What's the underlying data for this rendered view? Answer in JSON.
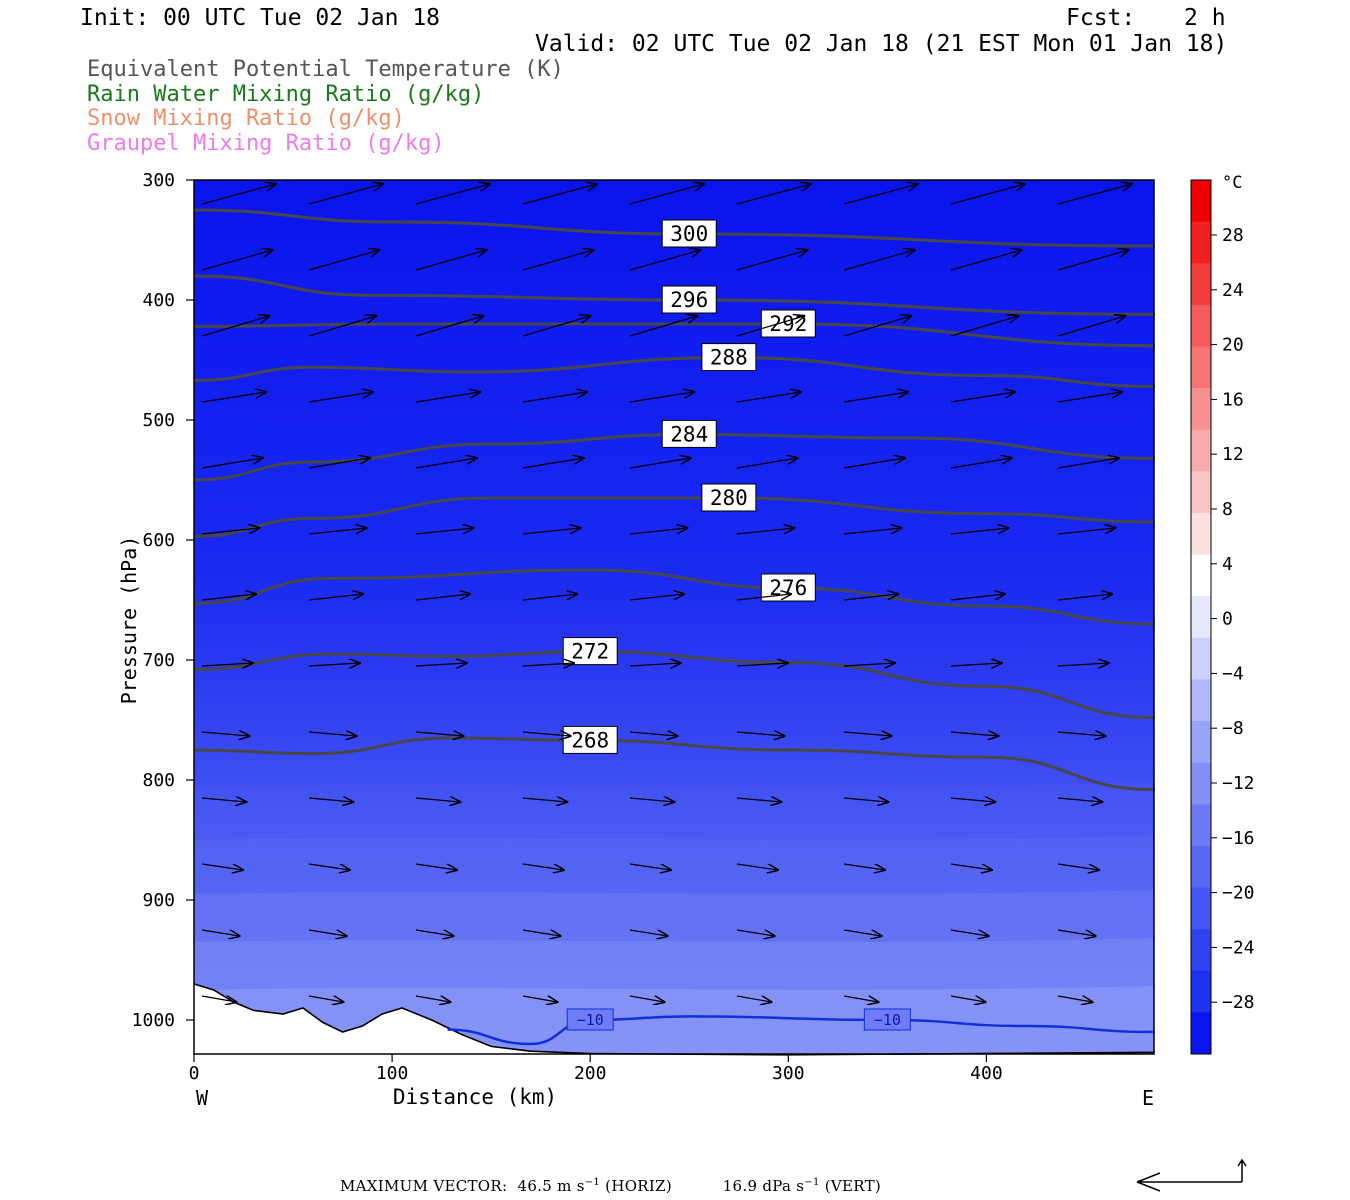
{
  "header": {
    "init": "Init: 00 UTC Tue 02 Jan 18",
    "fcst_label": "Fcst:",
    "fcst_value": "2 h",
    "valid": "Valid: 02 UTC Tue 02 Jan 18 (21 EST Mon 01 Jan 18)"
  },
  "legend": [
    {
      "label": "Equivalent Potential Temperature (K)",
      "color": "#555555"
    },
    {
      "label": "Rain Water Mixing Ratio (g/kg)",
      "color": "#1a7a1a"
    },
    {
      "label": "Snow Mixing Ratio (g/kg)",
      "color": "#f0906a"
    },
    {
      "label": "Graupel Mixing Ratio (g/kg)",
      "color": "#f07af0"
    }
  ],
  "colorbar": {
    "unit": "°C",
    "labels": [
      "28",
      "24",
      "20",
      "16",
      "12",
      "8",
      "4",
      "0",
      "−4",
      "−8",
      "−12",
      "−16",
      "−20",
      "−24",
      "−28"
    ]
  },
  "chart_data": {
    "type": "cross-section",
    "xlabel": "Distance (km)",
    "ylabel": "Pressure (hPa)",
    "xlim": [
      0,
      485
    ],
    "ylim": [
      1030,
      300
    ],
    "x_ticks": [
      0,
      100,
      200,
      300,
      400
    ],
    "y_ticks": [
      300,
      400,
      500,
      600,
      700,
      800,
      900,
      1000
    ],
    "west_label": "W",
    "east_label": "E",
    "theta_e_contours": [
      {
        "value": 300,
        "label": "300",
        "points": [
          [
            0,
            325
          ],
          [
            100,
            335
          ],
          [
            250,
            345
          ],
          [
            485,
            355
          ]
        ]
      },
      {
        "value": 296,
        "label": "296",
        "points": [
          [
            0,
            380
          ],
          [
            90,
            396
          ],
          [
            250,
            400
          ],
          [
            485,
            412
          ]
        ]
      },
      {
        "value": 292,
        "label": "292",
        "points": [
          [
            0,
            422
          ],
          [
            100,
            420
          ],
          [
            300,
            420
          ],
          [
            485,
            438
          ]
        ]
      },
      {
        "value": 288,
        "label": "288",
        "points": [
          [
            0,
            467
          ],
          [
            60,
            456
          ],
          [
            140,
            460
          ],
          [
            270,
            448
          ],
          [
            400,
            463
          ],
          [
            485,
            472
          ]
        ]
      },
      {
        "value": 284,
        "label": "284",
        "points": [
          [
            0,
            550
          ],
          [
            60,
            535
          ],
          [
            150,
            520
          ],
          [
            250,
            512
          ],
          [
            360,
            515
          ],
          [
            485,
            532
          ]
        ]
      },
      {
        "value": 280,
        "label": "280",
        "points": [
          [
            0,
            597
          ],
          [
            60,
            582
          ],
          [
            150,
            565
          ],
          [
            270,
            565
          ],
          [
            400,
            578
          ],
          [
            485,
            585
          ]
        ]
      },
      {
        "value": 276,
        "label": "276",
        "points": [
          [
            0,
            653
          ],
          [
            70,
            632
          ],
          [
            200,
            625
          ],
          [
            300,
            640
          ],
          [
            400,
            655
          ],
          [
            485,
            670
          ]
        ]
      },
      {
        "value": 272,
        "label": "272",
        "points": [
          [
            0,
            708
          ],
          [
            70,
            695
          ],
          [
            130,
            697
          ],
          [
            200,
            693
          ],
          [
            300,
            702
          ],
          [
            400,
            722
          ],
          [
            485,
            748
          ]
        ]
      },
      {
        "value": 268,
        "label": "268",
        "points": [
          [
            0,
            775
          ],
          [
            60,
            778
          ],
          [
            130,
            765
          ],
          [
            200,
            767
          ],
          [
            300,
            775
          ],
          [
            400,
            781
          ],
          [
            485,
            808
          ]
        ]
      }
    ],
    "temperature_contours": [
      {
        "value": -10,
        "label": "−10",
        "points": [
          [
            128,
            1008
          ],
          [
            170,
            1020
          ],
          [
            200,
            1000
          ],
          [
            250,
            997
          ],
          [
            350,
            1000
          ],
          [
            420,
            1005
          ],
          [
            485,
            1010
          ]
        ]
      }
    ],
    "max_vector": {
      "label": "MAXIMUM VECTOR:",
      "horiz": "46.5 m s",
      "horiz_unit": "−1",
      "horiz_tag": "(HORIZ)",
      "vert": "16.9 dPa s",
      "vert_unit": "−1",
      "vert_tag": "(VERT)"
    }
  }
}
